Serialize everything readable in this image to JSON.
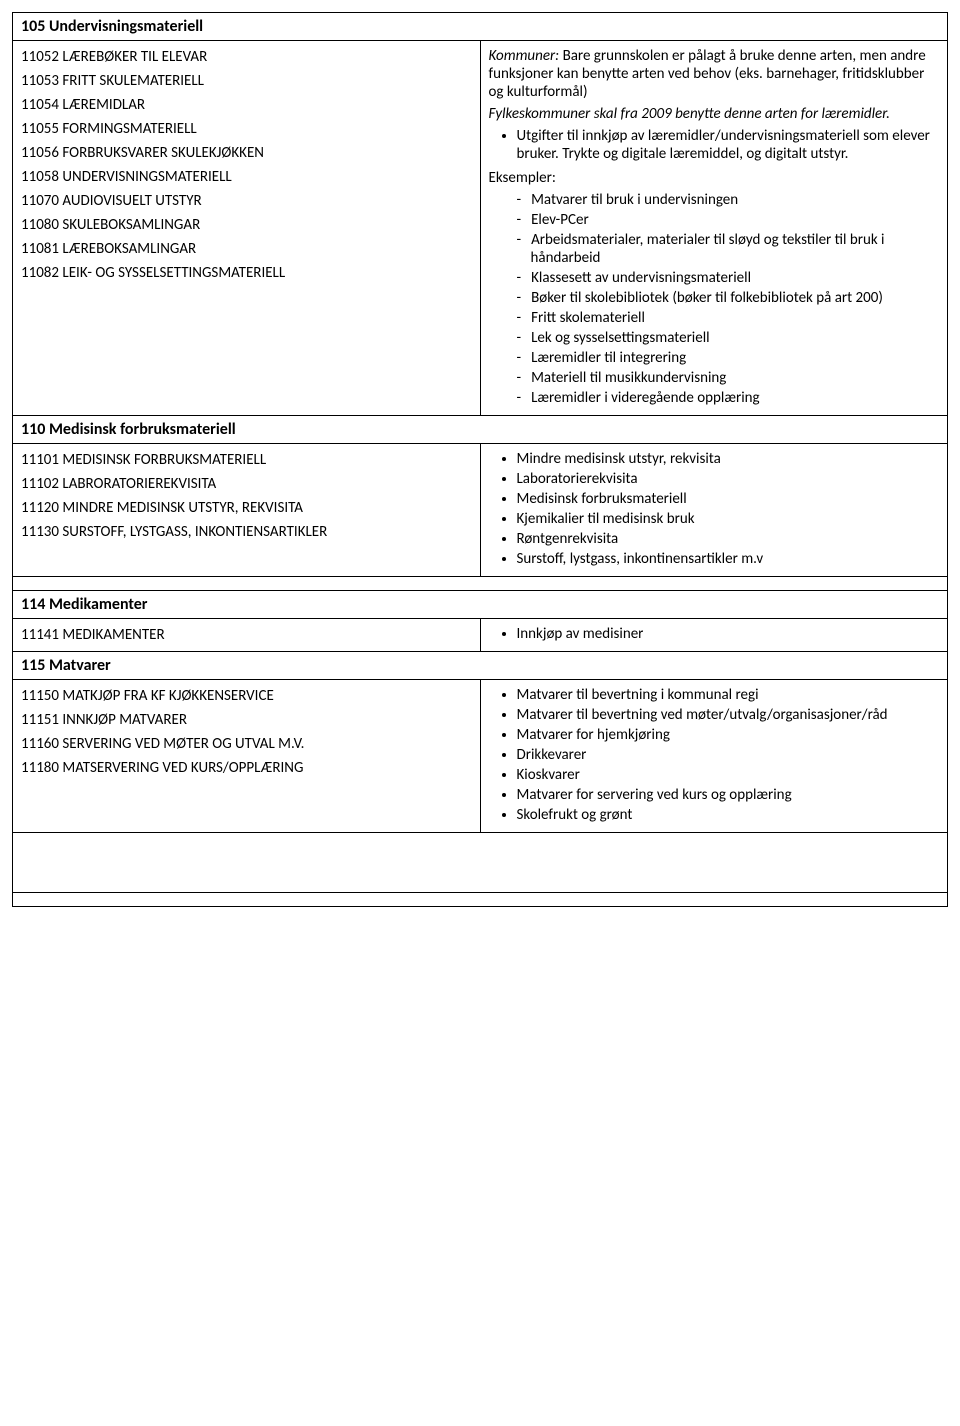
{
  "sections": {
    "s105": {
      "title": "105 Undervisningsmateriell",
      "codes": [
        "11052 LÆREBØKER TIL ELEVAR",
        "11053 FRITT SKULEMATERIELL",
        "11054 LÆREMIDLAR",
        "11055 FORMINGSMATERIELL",
        "11056 FORBRUKSVARER SKULEKJØKKEN",
        "11058 UNDERVISNINGSMATERIELL",
        "11070 AUDIOVISUELT UTSTYR",
        "11080 SKULEBOKSAMLINGAR",
        "11081 LÆREBOKSAMLINGAR",
        "11082 LEIK- OG SYSSELSETTINGSMATERIELL"
      ],
      "desc_intro_label": "Kommuner:",
      "desc_intro_text": " Bare grunnskolen er pålagt å bruke denne arten, men andre funksjoner kan benytte arten ved behov (eks. barnehager, fritidsklubber og kulturformål)",
      "desc_intro2": "Fylkeskommuner skal fra 2009 benytte denne arten for læremidler.",
      "bullet1": "Utgifter til innkjøp av læremidler/undervisningsmateriell som elever bruker. Trykte og digitale læremiddel, og digitalt utstyr.",
      "examples_label": "Eksempler:",
      "examples": [
        "Matvarer til bruk i undervisningen",
        "Elev-PCer",
        "Arbeidsmaterialer, materialer til sløyd og tekstiler til bruk i håndarbeid",
        "Klassesett av undervisningsmateriell",
        "Bøker til skolebibliotek (bøker til folkebibliotek på art 200)",
        "Fritt skolemateriell",
        "Lek og sysselsettingsmateriell",
        "Læremidler til integrering",
        "Materiell til musikkundervisning",
        "Læremidler i videregående opplæring"
      ]
    },
    "s110": {
      "title": "110 Medisinsk forbruksmateriell",
      "codes": [
        "11101 MEDISINSK FORBRUKSMATERIELL",
        "11102 LABRORATORIEREKVISITA",
        "11120 MINDRE MEDISINSK UTSTYR, REKVISITA",
        "11130 SURSTOFF, LYSTGASS, INKONTIENSARTIKLER"
      ],
      "bullets": [
        "Mindre medisinsk utstyr, rekvisita",
        "Laboratorierekvisita",
        "Medisinsk forbruksmateriell",
        "Kjemikalier til medisinsk bruk",
        "Røntgenrekvisita",
        "Surstoff, lystgass, inkontinensartikler m.v"
      ]
    },
    "s114": {
      "title": "114 Medikamenter",
      "codes": [
        "11141 MEDIKAMENTER"
      ],
      "bullets": [
        "Innkjøp av medisiner"
      ]
    },
    "s115": {
      "title": "115 Matvarer",
      "codes": [
        "11150 MATKJØP FRA KF KJØKKENSERVICE",
        "11151 INNKJØP MATVARER",
        "11160 SERVERING VED MØTER OG UTVAL M.V.",
        "11180 MATSERVERING VED KURS/OPPLÆRING"
      ],
      "bullets": [
        "Matvarer til bevertning i kommunal regi",
        "Matvarer til bevertning ved møter/utvalg/organisasjoner/råd",
        "Matvarer for hjemkjøring",
        "Drikkevarer",
        "Kioskvarer",
        "Matvarer for servering ved kurs og opplæring",
        "Skolefrukt og grønt"
      ]
    }
  }
}
